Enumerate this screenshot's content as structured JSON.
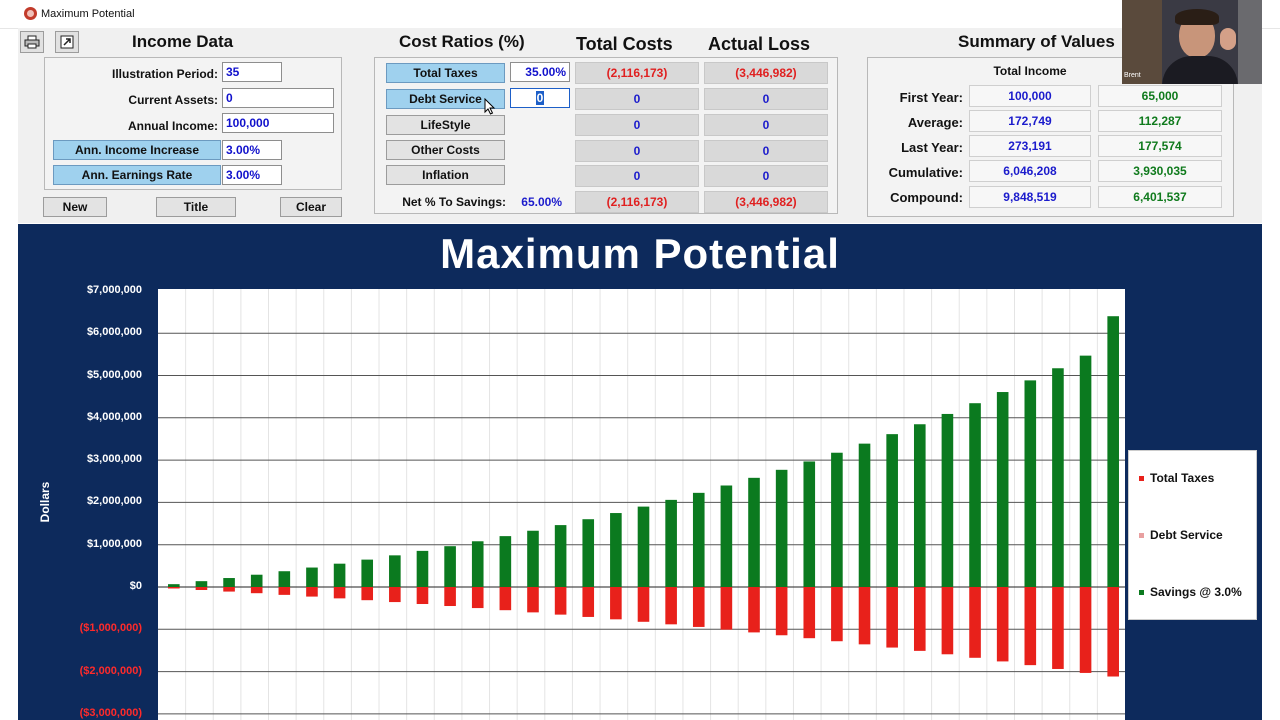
{
  "window": {
    "title": "Maximum Potential"
  },
  "income": {
    "heading": "Income Data",
    "fields": [
      {
        "label": "Illustration Period:",
        "value": "35"
      },
      {
        "label": "Current Assets:",
        "value": "0"
      },
      {
        "label": "Annual Income:",
        "value": "100,000"
      }
    ],
    "blue_fields": [
      {
        "label": "Ann. Income Increase",
        "value": "3.00%"
      },
      {
        "label": "Ann. Earnings Rate",
        "value": "3.00%"
      }
    ],
    "buttons": [
      "New",
      "Title",
      "Clear"
    ]
  },
  "costs": {
    "heading": "Cost Ratios (%)",
    "total_costs_heading": "Total Costs",
    "actual_loss_heading": "Actual Loss",
    "rows": [
      {
        "label": "Total Taxes",
        "pct": "35.00%",
        "total": "(2,116,173)",
        "loss": "(3,446,982)"
      },
      {
        "label": "Debt Service",
        "pct": "0",
        "total": "0",
        "loss": "0"
      },
      {
        "label": "LifeStyle",
        "pct": "",
        "total": "0",
        "loss": "0"
      },
      {
        "label": "Other Costs",
        "pct": "",
        "total": "0",
        "loss": "0"
      },
      {
        "label": "Inflation",
        "pct": "",
        "total": "0",
        "loss": "0"
      }
    ],
    "net": {
      "label": "Net % To Savings:",
      "pct": "65.00%",
      "total": "(2,116,173)",
      "loss": "(3,446,982)"
    }
  },
  "summary": {
    "heading": "Summary of Values",
    "col1_heading": "Total Income",
    "rows": [
      {
        "label": "First Year:",
        "income": "100,000",
        "net": "65,000"
      },
      {
        "label": "Average:",
        "income": "172,749",
        "net": "112,287"
      },
      {
        "label": "Last Year:",
        "income": "273,191",
        "net": "177,574"
      },
      {
        "label": "Cumulative:",
        "income": "6,046,208",
        "net": "3,930,035"
      },
      {
        "label": "Compound:",
        "income": "9,848,519",
        "net": "6,401,537"
      }
    ]
  },
  "webcam": {
    "name": "Brent"
  },
  "colors": {
    "chart_bg": "#0d2a5c",
    "taxes": "#e8211b",
    "debt": "#e8a0a0",
    "savings": "#0b7a1f"
  },
  "chart_data": {
    "type": "bar",
    "title": "Maximum Potential",
    "ylabel": "Dollars",
    "ylim": [
      -3000000,
      7000000
    ],
    "y_ticks": [
      "$7,000,000",
      "$6,000,000",
      "$5,000,000",
      "$4,000,000",
      "$3,000,000",
      "$2,000,000",
      "$1,000,000",
      "$0",
      "($1,000,000)",
      "($2,000,000)",
      "($3,000,000)"
    ],
    "legend_position": "right",
    "series": [
      {
        "name": "Total Taxes",
        "color": "#e8211b",
        "values": [
          -35000,
          -71050,
          -108200,
          -146500,
          -186000,
          -226700,
          -268600,
          -311800,
          -356300,
          -402200,
          -449400,
          -498100,
          -548200,
          -599900,
          -653100,
          -707900,
          -764400,
          -822500,
          -882500,
          -944300,
          -1007900,
          -1073400,
          -1140900,
          -1210400,
          -1282000,
          -1355800,
          -1431800,
          -1510000,
          -1590600,
          -1673700,
          -1759200,
          -1847300,
          -1938000,
          -2031500,
          -2116173
        ]
      },
      {
        "name": "Debt Service",
        "color": "#e8a0a0",
        "values": [
          0,
          0,
          0,
          0,
          0,
          0,
          0,
          0,
          0,
          0,
          0,
          0,
          0,
          0,
          0,
          0,
          0,
          0,
          0,
          0,
          0,
          0,
          0,
          0,
          0,
          0,
          0,
          0,
          0,
          0,
          0,
          0,
          0,
          0,
          0
        ]
      },
      {
        "name": "Savings @ 3.0%",
        "color": "#0b7a1f",
        "values": [
          66950,
          137900,
          212000,
          290400,
          373000,
          460000,
          551400,
          647500,
          748300,
          854100,
          964900,
          1081100,
          1202700,
          1330000,
          1463300,
          1602600,
          1748300,
          1900600,
          2059700,
          2225900,
          2399600,
          2580900,
          2770300,
          2967900,
          3174200,
          3389300,
          3613600,
          3847500,
          4091100,
          4345000,
          4609200,
          4884600,
          5171200,
          5469600,
          6401537
        ]
      }
    ]
  }
}
